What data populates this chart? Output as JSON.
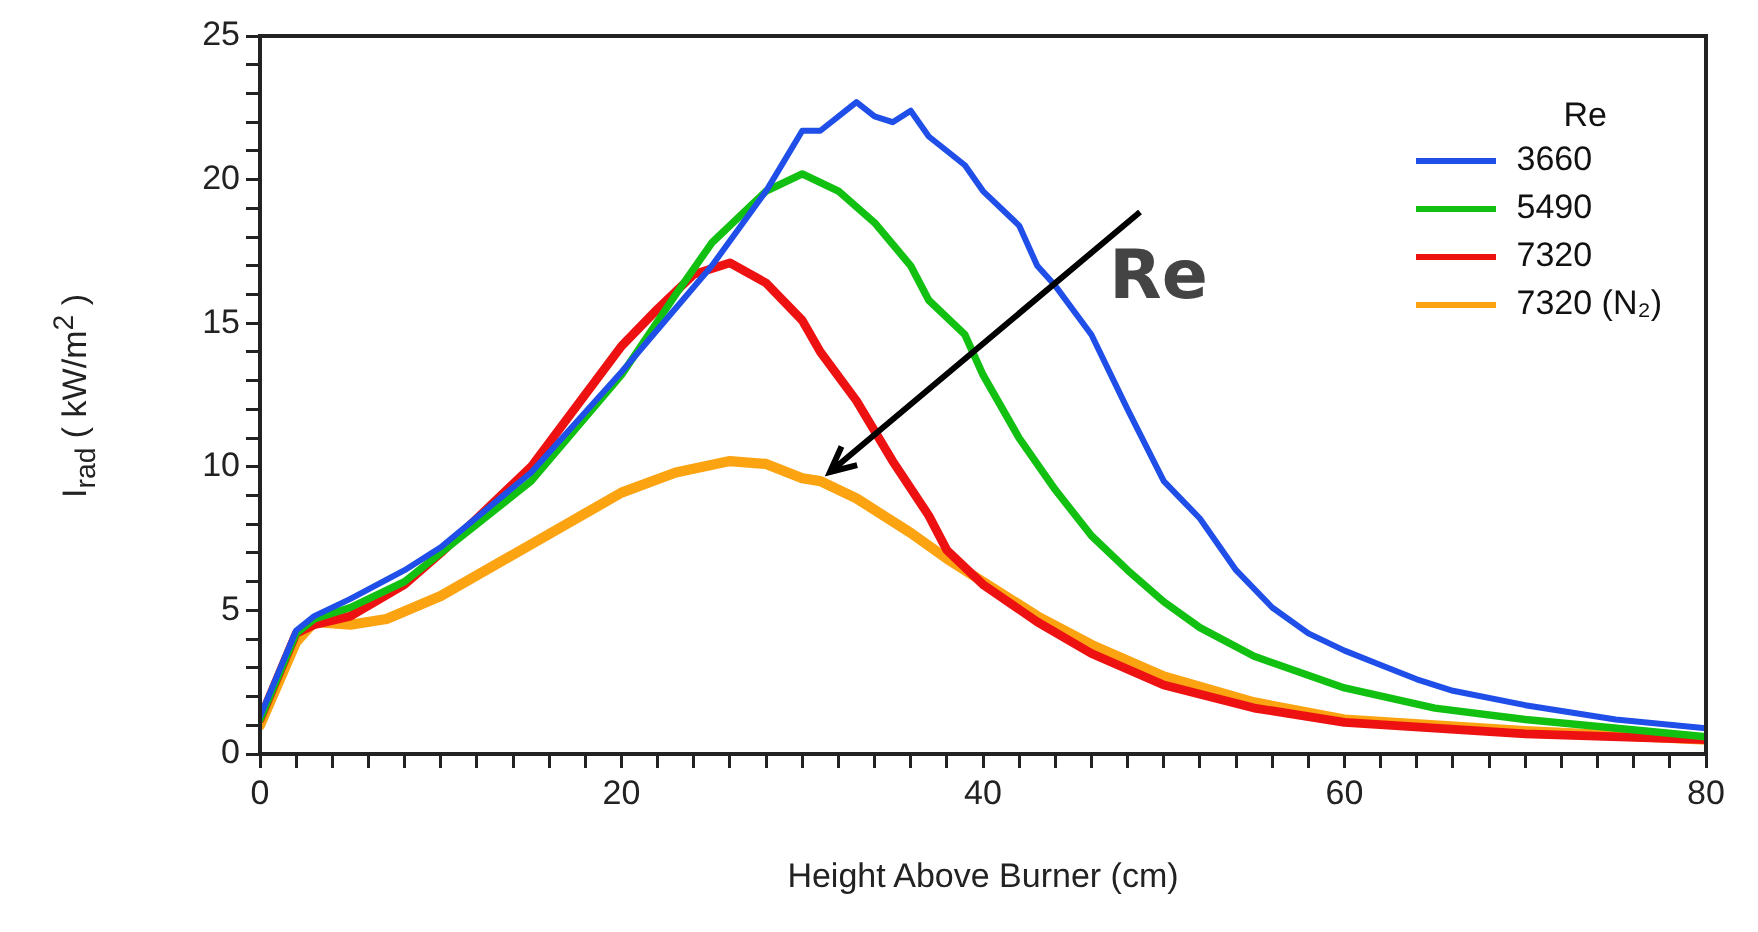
{
  "chart_data": {
    "type": "line",
    "xlabel": "Height Above Burner (cm)",
    "ylabel": "I$_{rad}$ ( kW/m$^{2}$ )",
    "legend_title": "Re",
    "legend": "top right",
    "grid": false,
    "marker": "none",
    "line_style": "solid",
    "xlim": [
      0,
      80
    ],
    "ylim": [
      0,
      25
    ],
    "xticks": [
      0,
      {
        "value": 2,
        "label": null
      },
      {
        "value": 4,
        "label": null
      },
      {
        "value": 6,
        "label": null
      },
      {
        "value": 8,
        "label": null
      },
      {
        "value": 10,
        "label": null
      },
      {
        "value": 12,
        "label": null
      },
      {
        "value": 14,
        "label": null
      },
      {
        "value": 16,
        "label": null
      },
      {
        "value": 18,
        "label": null
      },
      20,
      {
        "value": 22,
        "label": null
      },
      {
        "value": 24,
        "label": null
      },
      {
        "value": 26,
        "label": null
      },
      {
        "value": 28,
        "label": null
      },
      {
        "value": 30,
        "label": null
      },
      {
        "value": 32,
        "label": null
      },
      {
        "value": 34,
        "label": null
      },
      {
        "value": 36,
        "label": null
      },
      {
        "value": 38,
        "label": null
      },
      40,
      {
        "value": 42,
        "label": null
      },
      {
        "value": 44,
        "label": null
      },
      {
        "value": 46,
        "label": null
      },
      {
        "value": 48,
        "label": null
      },
      {
        "value": 50,
        "label": null
      },
      {
        "value": 52,
        "label": null
      },
      {
        "value": 54,
        "label": null
      },
      {
        "value": 56,
        "label": null
      },
      {
        "value": 58,
        "label": null
      },
      60,
      {
        "value": 62,
        "label": null
      },
      {
        "value": 64,
        "label": null
      },
      {
        "value": 66,
        "label": null
      },
      {
        "value": 68,
        "label": null
      },
      {
        "value": 70,
        "label": null
      },
      {
        "value": 72,
        "label": null
      },
      {
        "value": 74,
        "label": null
      },
      {
        "value": 76,
        "label": null
      },
      {
        "value": 78,
        "label": null
      },
      80
    ],
    "yticks": [
      0,
      {
        "value": 1,
        "label": null
      },
      {
        "value": 2,
        "label": null
      },
      {
        "value": 3,
        "label": null
      },
      {
        "value": 4,
        "label": null
      },
      5,
      {
        "value": 6,
        "label": null
      },
      {
        "value": 7,
        "label": null
      },
      {
        "value": 8,
        "label": null
      },
      {
        "value": 9,
        "label": null
      },
      10,
      {
        "value": 11,
        "label": null
      },
      {
        "value": 12,
        "label": null
      },
      {
        "value": 13,
        "label": null
      },
      {
        "value": 14,
        "label": null
      },
      15,
      {
        "value": 16,
        "label": null
      },
      {
        "value": 17,
        "label": null
      },
      {
        "value": 18,
        "label": null
      },
      {
        "value": 19,
        "label": null
      },
      20,
      {
        "value": 21,
        "label": null
      },
      {
        "value": 22,
        "label": null
      },
      {
        "value": 23,
        "label": null
      },
      {
        "value": 24,
        "label": null
      },
      25
    ],
    "annotations": [
      {
        "text": "Re",
        "x": 31.5,
        "y": 9.8
      }
    ],
    "series": [
      {
        "name": "3660",
        "color": "#1f4fe8",
        "x": [
          0,
          2,
          3,
          5,
          8,
          10,
          15,
          20,
          25,
          28,
          30,
          31,
          33,
          34,
          35,
          36,
          37,
          39,
          40,
          42,
          43,
          44,
          46,
          48,
          50,
          52,
          54,
          56,
          58,
          60,
          62,
          64,
          66,
          70,
          75,
          80
        ],
        "values": [
          1.3,
          4.3,
          4.8,
          5.4,
          6.4,
          7.2,
          9.8,
          13.3,
          17.0,
          19.6,
          21.7,
          21.7,
          22.7,
          22.2,
          22.0,
          22.4,
          21.5,
          20.5,
          19.6,
          18.4,
          17.0,
          16.3,
          14.6,
          12.0,
          9.5,
          8.2,
          6.4,
          5.1,
          4.2,
          3.6,
          3.1,
          2.6,
          2.2,
          1.7,
          1.2,
          0.9
        ]
      },
      {
        "name": "5490",
        "color": "#12c012",
        "x": [
          0,
          2,
          3,
          5,
          8,
          10,
          15,
          20,
          23,
          25,
          28,
          30,
          32,
          34,
          36,
          37,
          39,
          40,
          42,
          44,
          46,
          48,
          50,
          52,
          55,
          60,
          65,
          70,
          80
        ],
        "values": [
          1.2,
          4.2,
          4.7,
          5.1,
          6.0,
          7.0,
          9.5,
          13.2,
          16.0,
          17.8,
          19.6,
          20.2,
          19.6,
          18.5,
          17.0,
          15.8,
          14.6,
          13.2,
          11.0,
          9.2,
          7.6,
          6.4,
          5.3,
          4.4,
          3.4,
          2.3,
          1.6,
          1.2,
          0.6
        ]
      },
      {
        "name": "7320",
        "color": "#ee1111",
        "x": [
          0,
          2,
          3,
          5,
          8,
          10,
          15,
          20,
          22,
          24,
          26,
          28,
          30,
          31,
          33,
          35,
          37,
          38,
          40,
          43,
          46,
          50,
          55,
          60,
          70,
          80
        ],
        "values": [
          1.2,
          4.2,
          4.5,
          4.8,
          5.9,
          7.0,
          10.0,
          14.2,
          15.5,
          16.7,
          17.1,
          16.4,
          15.1,
          14.0,
          12.3,
          10.2,
          8.3,
          7.1,
          5.9,
          4.6,
          3.5,
          2.4,
          1.6,
          1.1,
          0.7,
          0.5
        ]
      },
      {
        "name": "7320 (N₂)",
        "color": "#fca311",
        "x": [
          0,
          2,
          3,
          5,
          7,
          10,
          15,
          20,
          23,
          26,
          28,
          30,
          31,
          33,
          36,
          38,
          40,
          43,
          46,
          50,
          55,
          60,
          70,
          80
        ],
        "values": [
          1.0,
          3.9,
          4.6,
          4.5,
          4.7,
          5.5,
          7.3,
          9.1,
          9.8,
          10.2,
          10.1,
          9.6,
          9.5,
          8.9,
          7.7,
          6.8,
          6.0,
          4.8,
          3.8,
          2.7,
          1.8,
          1.2,
          0.8,
          0.5
        ]
      }
    ]
  }
}
